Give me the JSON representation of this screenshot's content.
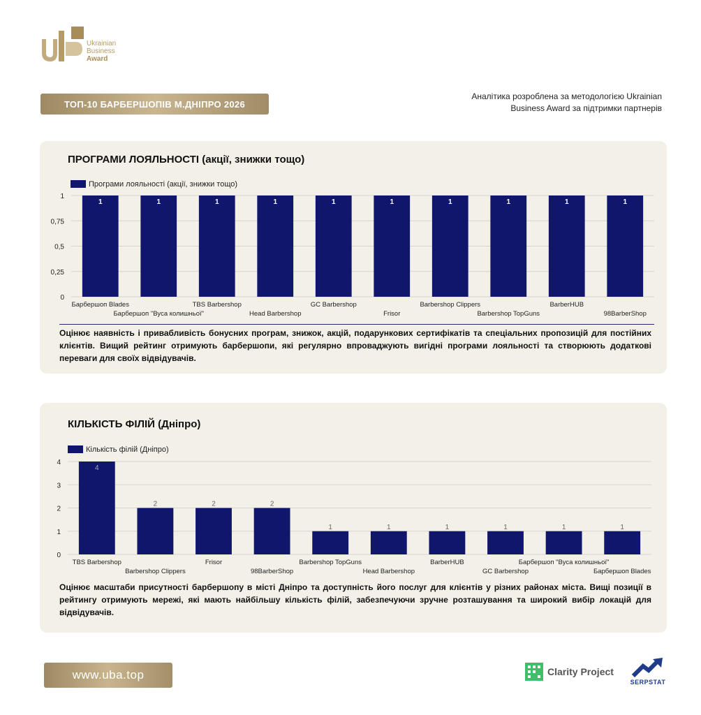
{
  "header": {
    "logo_line1": "Ukrainian",
    "logo_line2": "Business",
    "logo_line3": "Award",
    "title": "ТОП-10 БАРБЕРШОПІВ М.ДНІПРО 2026",
    "analytics_note": "Аналітика розроблена за методологією Ukrainian Business Award за підтримки партнерів"
  },
  "colors": {
    "bar": "#10166b",
    "gold": "#b39a66",
    "card_bg": "#f3f0e7"
  },
  "chart_data": [
    {
      "type": "bar",
      "title": "ПРОГРАМИ ЛОЯЛЬНОСТІ (акції, знижки тощо)",
      "legend": "Програми лояльності (акції, знижки тощо)",
      "legend_position": "top-left",
      "categories": [
        "Барбершоп Blades",
        "Барбершоп \"Вуса колишньої\"",
        "TBS Barbershop",
        "Head Barbershop",
        "GC Barbershop",
        "Frisor",
        "Barbershop Clippers",
        "Barbershop TopGuns",
        "BarberHUB",
        "98BarberShop"
      ],
      "values": [
        1,
        1,
        1,
        1,
        1,
        1,
        1,
        1,
        1,
        1
      ],
      "ylim": [
        0,
        1
      ],
      "yticks": [
        "0",
        "0,25",
        "0,5",
        "0,75",
        "1"
      ],
      "grid": true,
      "description": "Оцінює наявність і привабливість бонусних програм, знижок, акцій, подарункових сертифікатів та спеціальних пропозицій для постійних клієнтів. Вищий рейтинг отримують барбершопи, які регулярно впроваджують вигідні програми лояльності та створюють додаткові переваги для своїх відвідувачів."
    },
    {
      "type": "bar",
      "title": "КІЛЬКІСТЬ ФІЛІЙ (Дніпро)",
      "legend": "Кількість філій (Дніпро)",
      "legend_position": "top-left",
      "categories": [
        "TBS Barbershop",
        "Barbershop Clippers",
        "Frisor",
        "98BarberShop",
        "Barbershop TopGuns",
        "Head Barbershop",
        "BarberHUB",
        "GC Barbershop",
        "Барбершоп \"Вуса колишньої\"",
        "Барбершоп Blades"
      ],
      "values": [
        4,
        2,
        2,
        2,
        1,
        1,
        1,
        1,
        1,
        1
      ],
      "ylim": [
        0,
        4
      ],
      "yticks": [
        "0",
        "1",
        "2",
        "3",
        "4"
      ],
      "grid": true,
      "description": "Оцінює масштаби присутності барбершопу в місті Дніпро та доступність його послуг для клієнтів у різних районах міста. Вищі позиції в рейтингу отримують мережі, які мають найбільшу кількість філій, забезпечуючи зручне розташування та широкий вибір локацій для відвідувачів."
    }
  ],
  "footer": {
    "site": "www.uba.top",
    "partner1": "Clarity Project",
    "partner2": "SERPSTAT"
  }
}
